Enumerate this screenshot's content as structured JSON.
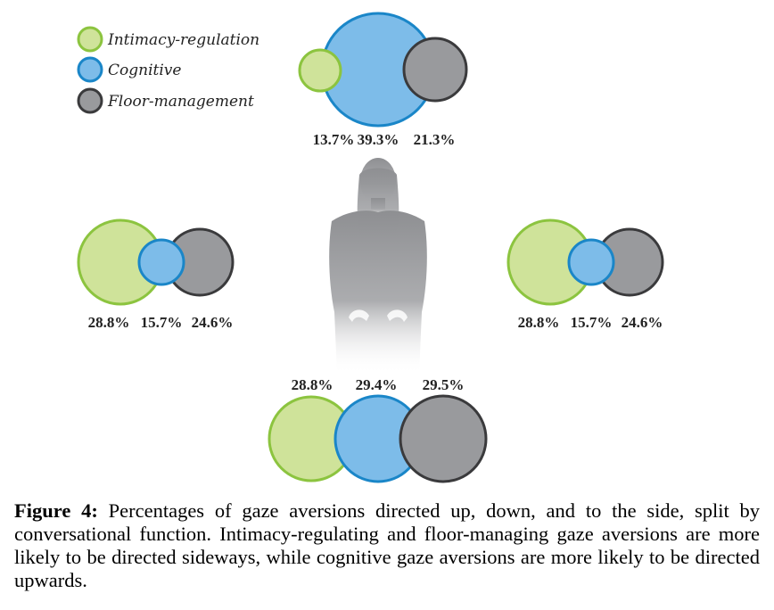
{
  "chart_data": {
    "type": "bubble-diagram",
    "legend": [
      {
        "label": "Intimacy-regulation",
        "color": "#cfe39a",
        "stroke": "#8cc43f"
      },
      {
        "label": "Cognitive",
        "color": "#7dbce9",
        "stroke": "#1a86c8"
      },
      {
        "label": "Floor-management",
        "color": "#999a9d",
        "stroke": "#3a3a3c"
      }
    ],
    "groups": [
      {
        "direction": "up",
        "values": [
          13.7,
          39.3,
          21.3
        ],
        "labels": [
          "13.7%",
          "39.3%",
          "21.3%"
        ]
      },
      {
        "direction": "left",
        "values": [
          28.8,
          15.7,
          24.6
        ],
        "labels": [
          "28.8%",
          "15.7%",
          "24.6%"
        ]
      },
      {
        "direction": "right",
        "values": [
          28.8,
          15.7,
          24.6
        ],
        "labels": [
          "28.8%",
          "15.7%",
          "24.6%"
        ]
      },
      {
        "direction": "down",
        "values": [
          28.8,
          29.4,
          29.5
        ],
        "labels": [
          "28.8%",
          "29.4%",
          "29.5%"
        ]
      }
    ]
  },
  "caption": {
    "label": "Figure 4:",
    "text": " Percentages of gaze aversions directed up, down, and to the side, split by conversational function.  Intimacy-regulating and floor-managing gaze aversions are more likely to be directed sideways, while cognitive gaze aversions are more likely to be directed upwards."
  }
}
